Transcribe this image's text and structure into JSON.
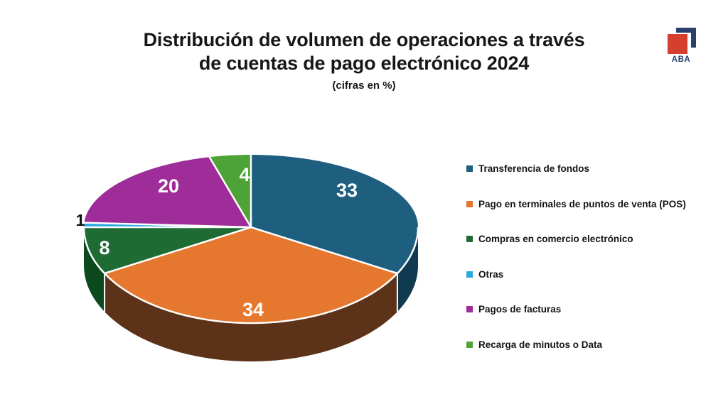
{
  "page": {
    "background": "#ffffff",
    "title": "Distribución de volumen de operaciones a través de cuentas de pago electrónico 2024",
    "title_lines": [
      "Distribución de volumen de operaciones a través",
      "de cuentas de pago electrónico 2024"
    ],
    "subtitle": "(cifras en %)"
  },
  "logo": {
    "text": "ABA",
    "red": "#d5402e",
    "navy": "#28406b"
  },
  "chart_data": {
    "type": "pie",
    "style": "3d",
    "title": "Distribución de volumen de operaciones a través de cuentas de pago electrónico 2024",
    "subtitle": "(cifras en %)",
    "units": "%",
    "start_angle_deg": 0,
    "direction": "clockwise",
    "legend_position": "right",
    "categories": [
      "Transferencia de fondos",
      "Pago en terminales de puntos de venta (POS)",
      "Compras en comercio electrónico",
      "Otras",
      "Pagos de facturas",
      "Recarga de minutos o Data"
    ],
    "values": [
      33,
      34,
      8,
      1,
      20,
      4
    ],
    "colors": [
      "#1e5f80",
      "#e6772e",
      "#1e6b33",
      "#2aa9dd",
      "#9e2c99",
      "#4ea336"
    ],
    "side_colors": [
      "#0f3a50",
      "#5c3218",
      "#0c4a1d",
      "#17607f",
      "#571553",
      "#2c621f"
    ],
    "value_label_colors": [
      "#ffffff",
      "#ffffff",
      "#ffffff",
      "#111111",
      "#ffffff",
      "#ffffff"
    ]
  }
}
